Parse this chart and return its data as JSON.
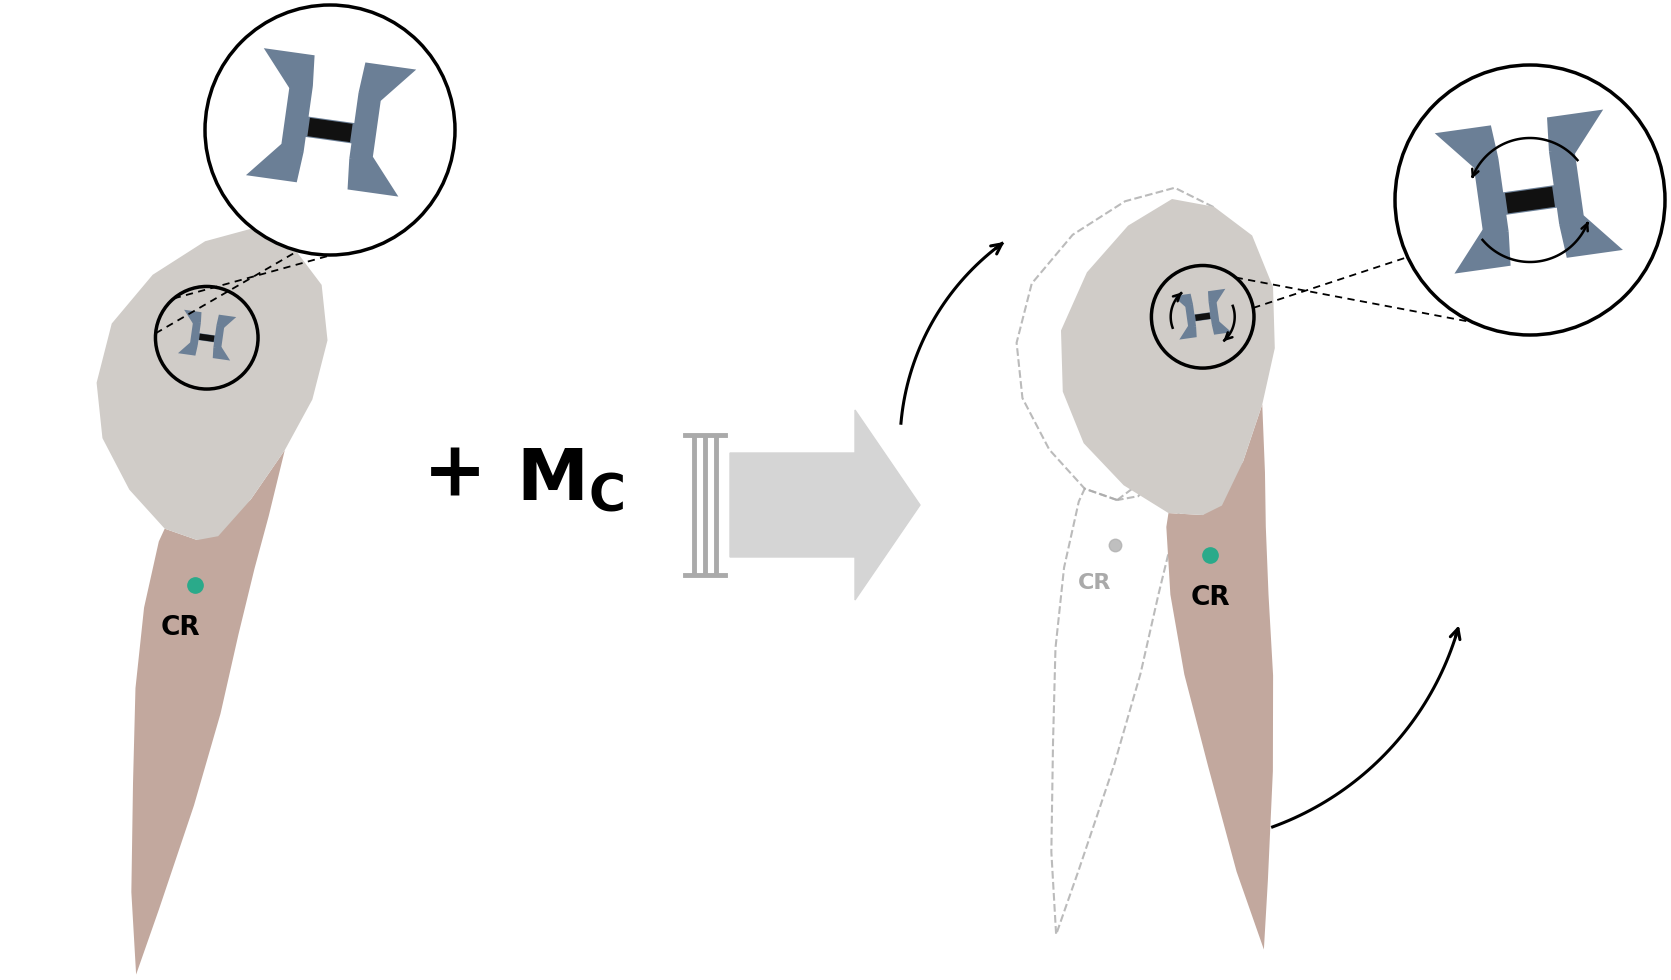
{
  "bg_color": "#ffffff",
  "crown_color": "#d0ccc8",
  "root_color": "#c2a89e",
  "bracket_color": "#6b7f96",
  "slot_color": "#111111",
  "dot_color": "#2aaa8a",
  "ghost_color": "#b0b0b0",
  "ghost_text_color": "#aaaaaa",
  "arrow_barrier_color": "#c8c8c8",
  "cr_text": "CR",
  "plus_text": "+",
  "mc_text": "M",
  "mc_sub": "C"
}
